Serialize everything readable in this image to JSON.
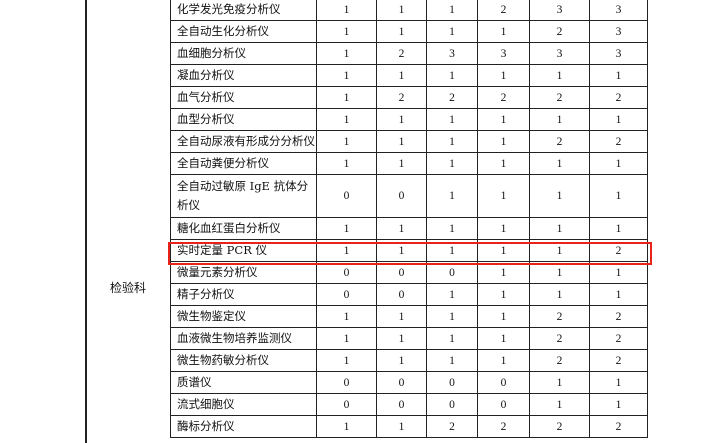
{
  "department": "检验科",
  "highlight_color": "#e8231a",
  "rows": [
    {
      "name": "化学发光免疫分析仪",
      "values": [
        "1",
        "1",
        "1",
        "2",
        "3",
        "3"
      ]
    },
    {
      "name": "全自动生化分析仪",
      "values": [
        "1",
        "1",
        "1",
        "1",
        "2",
        "3"
      ]
    },
    {
      "name": "血细胞分析仪",
      "values": [
        "1",
        "2",
        "3",
        "3",
        "3",
        "3"
      ]
    },
    {
      "name": "凝血分析仪",
      "values": [
        "1",
        "1",
        "1",
        "1",
        "1",
        "1"
      ]
    },
    {
      "name": "血气分析仪",
      "values": [
        "1",
        "2",
        "2",
        "2",
        "2",
        "2"
      ]
    },
    {
      "name": "血型分析仪",
      "values": [
        "1",
        "1",
        "1",
        "1",
        "1",
        "1"
      ]
    },
    {
      "name": "全自动尿液有形成分分析仪",
      "values": [
        "1",
        "1",
        "1",
        "1",
        "2",
        "2"
      ]
    },
    {
      "name": "全自动粪便分析仪",
      "values": [
        "1",
        "1",
        "1",
        "1",
        "1",
        "1"
      ]
    },
    {
      "name": "全自动过敏原 IgE 抗体分析仪",
      "values": [
        "0",
        "0",
        "1",
        "1",
        "1",
        "1"
      ]
    },
    {
      "name": "糖化血红蛋白分析仪",
      "values": [
        "1",
        "1",
        "1",
        "1",
        "1",
        "1"
      ]
    },
    {
      "name": "实时定量 PCR 仪",
      "values": [
        "1",
        "1",
        "1",
        "1",
        "1",
        "2"
      ],
      "highlighted": true
    },
    {
      "name": "微量元素分析仪",
      "values": [
        "0",
        "0",
        "0",
        "1",
        "1",
        "1"
      ]
    },
    {
      "name": "精子分析仪",
      "values": [
        "0",
        "0",
        "1",
        "1",
        "1",
        "1"
      ]
    },
    {
      "name": "微生物鉴定仪",
      "values": [
        "1",
        "1",
        "1",
        "1",
        "2",
        "2"
      ]
    },
    {
      "name": "血液微生物培养监测仪",
      "values": [
        "1",
        "1",
        "1",
        "1",
        "2",
        "2"
      ]
    },
    {
      "name": "微生物药敏分析仪",
      "values": [
        "1",
        "1",
        "1",
        "1",
        "2",
        "2"
      ]
    },
    {
      "name": "质谱仪",
      "values": [
        "0",
        "0",
        "0",
        "0",
        "1",
        "1"
      ]
    },
    {
      "name": "流式细胞仪",
      "values": [
        "0",
        "0",
        "0",
        "0",
        "1",
        "1"
      ]
    },
    {
      "name": "酶标分析仪",
      "values": [
        "1",
        "1",
        "2",
        "2",
        "2",
        "2"
      ]
    }
  ]
}
